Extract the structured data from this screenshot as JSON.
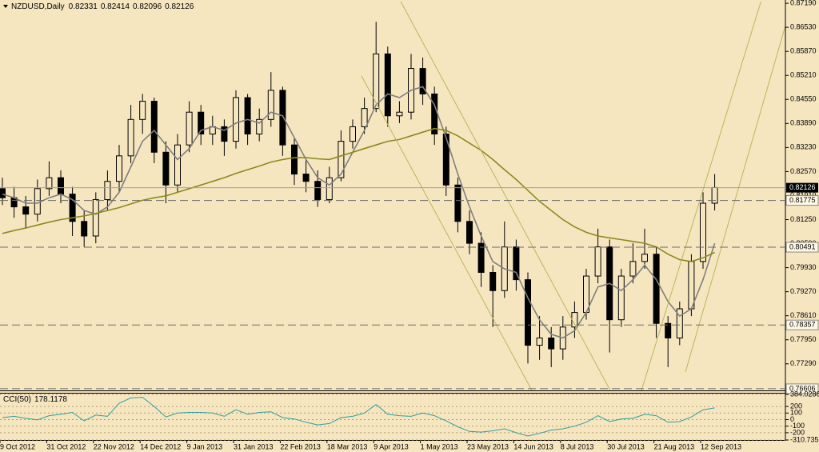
{
  "chart_data": [
    {
      "type": "candlestick",
      "title": "NZDUSD,Daily",
      "last_bar": [
        0.82331,
        0.82414,
        0.82096,
        0.82126
      ],
      "x_labels": [
        "9 Oct 2012",
        "31 Oct 2012",
        "22 Nov 2012",
        "14 Dec 2012",
        "9 Jan 2013",
        "31 Jan 2013",
        "22 Feb 2013",
        "18 Mar 2013",
        "9 Apr 2013",
        "1 May 2013",
        "23 May 2013",
        "14 Jun 2013",
        "8 Jul 2013",
        "30 Jul 2013",
        "21 Aug 2013",
        "12 Sep 2013"
      ],
      "ohlc": [
        [
          0.821,
          0.824,
          0.8165,
          0.8185
        ],
        [
          0.8185,
          0.8215,
          0.813,
          0.816
        ],
        [
          0.816,
          0.819,
          0.81,
          0.814
        ],
        [
          0.814,
          0.8235,
          0.812,
          0.821
        ],
        [
          0.821,
          0.8285,
          0.819,
          0.824
        ],
        [
          0.824,
          0.826,
          0.817,
          0.8195
        ],
        [
          0.8195,
          0.8215,
          0.808,
          0.812
        ],
        [
          0.812,
          0.815,
          0.805,
          0.808
        ],
        [
          0.808,
          0.82,
          0.806,
          0.818
        ],
        [
          0.818,
          0.826,
          0.815,
          0.823
        ],
        [
          0.823,
          0.833,
          0.82,
          0.83
        ],
        [
          0.83,
          0.844,
          0.828,
          0.84
        ],
        [
          0.84,
          0.847,
          0.836,
          0.845
        ],
        [
          0.845,
          0.846,
          0.828,
          0.831
        ],
        [
          0.831,
          0.834,
          0.817,
          0.822
        ],
        [
          0.822,
          0.836,
          0.82,
          0.833
        ],
        [
          0.833,
          0.845,
          0.831,
          0.842
        ],
        [
          0.842,
          0.844,
          0.833,
          0.836
        ],
        [
          0.836,
          0.841,
          0.833,
          0.838
        ],
        [
          0.838,
          0.84,
          0.83,
          0.834
        ],
        [
          0.834,
          0.848,
          0.832,
          0.846
        ],
        [
          0.846,
          0.847,
          0.833,
          0.836
        ],
        [
          0.836,
          0.843,
          0.834,
          0.84
        ],
        [
          0.84,
          0.853,
          0.838,
          0.848
        ],
        [
          0.848,
          0.849,
          0.83,
          0.833
        ],
        [
          0.833,
          0.835,
          0.822,
          0.825
        ],
        [
          0.825,
          0.829,
          0.82,
          0.823
        ],
        [
          0.823,
          0.826,
          0.816,
          0.818
        ],
        [
          0.818,
          0.827,
          0.817,
          0.824
        ],
        [
          0.824,
          0.837,
          0.823,
          0.834
        ],
        [
          0.834,
          0.84,
          0.832,
          0.838
        ],
        [
          0.838,
          0.846,
          0.836,
          0.843
        ],
        [
          0.843,
          0.8668,
          0.842,
          0.858
        ],
        [
          0.858,
          0.86,
          0.838,
          0.841
        ],
        [
          0.841,
          0.845,
          0.839,
          0.842
        ],
        [
          0.842,
          0.858,
          0.84,
          0.854
        ],
        [
          0.854,
          0.857,
          0.844,
          0.847
        ],
        [
          0.847,
          0.849,
          0.833,
          0.836
        ],
        [
          0.836,
          0.838,
          0.819,
          0.822
        ],
        [
          0.822,
          0.824,
          0.809,
          0.812
        ],
        [
          0.812,
          0.815,
          0.803,
          0.806
        ],
        [
          0.806,
          0.809,
          0.794,
          0.798
        ],
        [
          0.798,
          0.8,
          0.783,
          0.793
        ],
        [
          0.793,
          0.812,
          0.791,
          0.805
        ],
        [
          0.805,
          0.807,
          0.793,
          0.796
        ],
        [
          0.796,
          0.798,
          0.773,
          0.778
        ],
        [
          0.778,
          0.786,
          0.774,
          0.78
        ],
        [
          0.78,
          0.783,
          0.772,
          0.777
        ],
        [
          0.777,
          0.786,
          0.774,
          0.783
        ],
        [
          0.783,
          0.79,
          0.78,
          0.787
        ],
        [
          0.787,
          0.799,
          0.785,
          0.797
        ],
        [
          0.797,
          0.81,
          0.795,
          0.805
        ],
        [
          0.805,
          0.807,
          0.776,
          0.785
        ],
        [
          0.785,
          0.799,
          0.783,
          0.797
        ],
        [
          0.797,
          0.806,
          0.795,
          0.801
        ],
        [
          0.801,
          0.81,
          0.799,
          0.803
        ],
        [
          0.803,
          0.805,
          0.78,
          0.784
        ],
        [
          0.784,
          0.786,
          0.772,
          0.78
        ],
        [
          0.78,
          0.79,
          0.778,
          0.788
        ],
        [
          0.788,
          0.803,
          0.786,
          0.801
        ],
        [
          0.801,
          0.82,
          0.799,
          0.817
        ],
        [
          0.817,
          0.825,
          0.815,
          0.8213
        ]
      ],
      "series": [
        {
          "color": "#7f7f7f",
          "values": [
            0.8195,
            0.8185,
            0.817,
            0.817,
            0.8185,
            0.8195,
            0.818,
            0.815,
            0.814,
            0.816,
            0.82,
            0.827,
            0.834,
            0.837,
            0.833,
            0.829,
            0.832,
            0.837,
            0.838,
            0.837,
            0.839,
            0.84,
            0.839,
            0.842,
            0.841,
            0.835,
            0.829,
            0.824,
            0.822,
            0.825,
            0.831,
            0.837,
            0.844,
            0.847,
            0.846,
            0.848,
            0.849,
            0.844,
            0.835,
            0.825,
            0.816,
            0.808,
            0.801,
            0.799,
            0.798,
            0.791,
            0.785,
            0.781,
            0.78,
            0.782,
            0.787,
            0.794,
            0.795,
            0.793,
            0.796,
            0.8,
            0.796,
            0.79,
            0.786,
            0.788,
            0.796,
            0.806
          ]
        },
        {
          "color": "#8a8a1e",
          "values": [
            0.8087,
            0.8095,
            0.8102,
            0.811,
            0.8118,
            0.8125,
            0.813,
            0.8135,
            0.8142,
            0.815,
            0.8158,
            0.8168,
            0.8178,
            0.8185,
            0.819,
            0.82,
            0.821,
            0.822,
            0.823,
            0.824,
            0.8252,
            0.8262,
            0.8272,
            0.8283,
            0.829,
            0.8295,
            0.8295,
            0.8292,
            0.829,
            0.83,
            0.831,
            0.832,
            0.833,
            0.834,
            0.8345,
            0.8355,
            0.8365,
            0.8375,
            0.837,
            0.8355,
            0.8335,
            0.8315,
            0.829,
            0.8262,
            0.8235,
            0.8205,
            0.8175,
            0.815,
            0.8125,
            0.8105,
            0.809,
            0.808,
            0.8075,
            0.807,
            0.8065,
            0.806,
            0.805,
            0.803,
            0.8015,
            0.801,
            0.802,
            0.8035
          ]
        }
      ],
      "ylim": [
        0.7656,
        0.8728
      ],
      "yticks": [
        {
          "value": 0.8719,
          "label": "0.87190"
        },
        {
          "value": 0.8653,
          "label": "0.86530"
        },
        {
          "value": 0.8587,
          "label": "0.85870"
        },
        {
          "value": 0.8521,
          "label": "0.85210"
        },
        {
          "value": 0.8455,
          "label": "0.84550"
        },
        {
          "value": 0.8389,
          "label": "0.83890"
        },
        {
          "value": 0.8323,
          "label": "0.83230"
        },
        {
          "value": 0.8257,
          "label": "0.82570"
        },
        {
          "value": 0.8191,
          "label": "0.81910"
        },
        {
          "value": 0.8125,
          "label": "0.81250"
        },
        {
          "value": 0.8059,
          "label": "0.80590"
        },
        {
          "value": 0.7993,
          "label": "0.79930"
        },
        {
          "value": 0.7927,
          "label": "0.79270"
        },
        {
          "value": 0.7861,
          "label": "0.78610"
        },
        {
          "value": 0.7795,
          "label": "0.77950"
        },
        {
          "value": 0.7729,
          "label": "0.77290"
        }
      ],
      "levels": [
        0.81775,
        0.80491,
        0.78357,
        0.76606
      ],
      "color": "#000000",
      "grid": false
    },
    {
      "type": "line",
      "title": "CCI(50)",
      "values": [
        30,
        50,
        20,
        -5,
        60,
        80,
        110,
        -20,
        70,
        50,
        250,
        330,
        340,
        200,
        40,
        100,
        110,
        110,
        100,
        50,
        150,
        80,
        110,
        120,
        30,
        10,
        -40,
        -80,
        -60,
        30,
        50,
        100,
        230,
        80,
        60,
        50,
        100,
        60,
        -20,
        -110,
        -180,
        -190,
        -170,
        -140,
        -200,
        -250,
        -210,
        -160,
        -140,
        -100,
        -40,
        60,
        -30,
        10,
        20,
        80,
        60,
        -40,
        -30,
        40,
        150,
        178.1178
      ],
      "color": "#2e9e9e",
      "ylim": [
        -310.7356,
        384.0286
      ],
      "yticks": [
        384.0286,
        200,
        100,
        0,
        -100,
        -200,
        -310.7356
      ],
      "grid": true
    }
  ]
}
